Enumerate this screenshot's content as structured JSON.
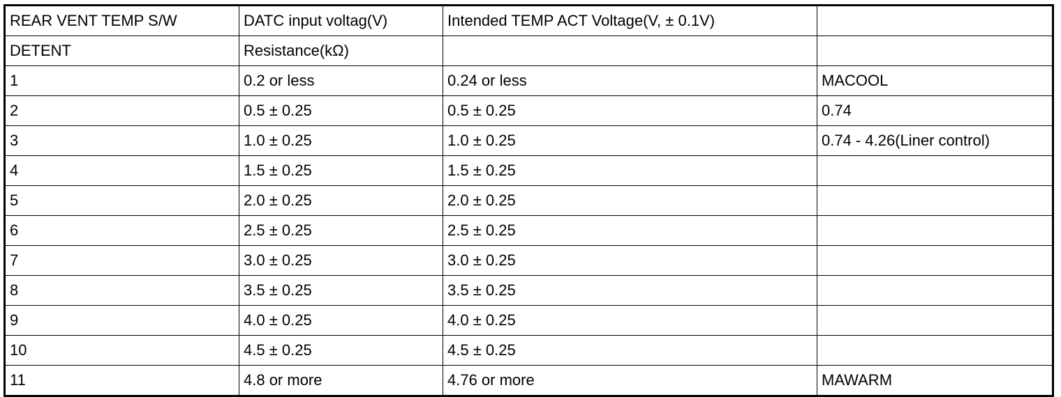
{
  "table": {
    "header_rows": [
      [
        "REAR VENT TEMP S/W",
        "DATC input voltag(V)",
        "Intended TEMP ACT Voltage(V, ± 0.1V)",
        ""
      ],
      [
        "DETENT",
        "Resistance(kΩ)",
        "",
        ""
      ]
    ],
    "rows": [
      [
        "1",
        "0.2 or less",
        "0.24 or less",
        "MACOOL"
      ],
      [
        "2",
        "0.5 ± 0.25",
        "0.5 ± 0.25",
        "0.74"
      ],
      [
        "3",
        "1.0 ± 0.25",
        "1.0 ± 0.25",
        "0.74 - 4.26(Liner control)"
      ],
      [
        "4",
        "1.5 ± 0.25",
        "1.5 ± 0.25",
        ""
      ],
      [
        "5",
        "2.0 ± 0.25",
        "2.0 ± 0.25",
        ""
      ],
      [
        "6",
        "2.5 ± 0.25",
        "2.5 ± 0.25",
        ""
      ],
      [
        "7",
        "3.0 ± 0.25",
        "3.0 ± 0.25",
        ""
      ],
      [
        "8",
        "3.5 ± 0.25",
        "3.5 ± 0.25",
        ""
      ],
      [
        "9",
        "4.0 ± 0.25",
        "4.0 ± 0.25",
        ""
      ],
      [
        "10",
        "4.5 ± 0.25",
        "4.5 ± 0.25",
        ""
      ],
      [
        "11",
        "4.8 or more",
        "4.76 or more",
        "MAWARM"
      ]
    ]
  }
}
